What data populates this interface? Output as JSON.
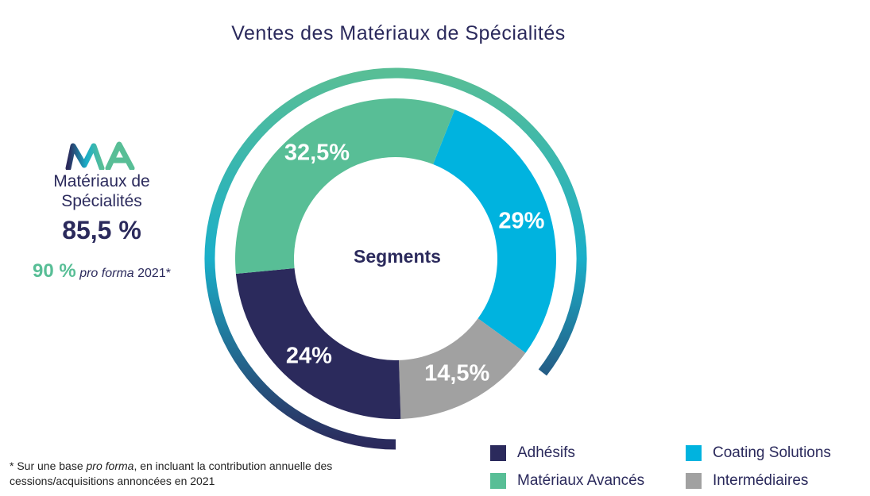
{
  "title": "Ventes des Matériaux de Spécialités",
  "left_panel": {
    "logo_text": "MA",
    "name": "Matériaux de Spécialités",
    "value": "85,5 %",
    "proforma_value": "90 %",
    "proforma_italic": "pro forma",
    "proforma_year": "2021*"
  },
  "footnote": {
    "prefix": "* Sur une base ",
    "italic": "pro forma",
    "suffix": ", en incluant la contribution annuelle des cessions/acquisitions annoncées en 2021"
  },
  "colors": {
    "Adhésifs": "#2b2a5c",
    "Matériaux Avancés": "#58be96",
    "Coating Solutions": "#00b3df",
    "Intermédiaires": "#a1a1a1",
    "ring_top": "#58be96",
    "ring_mid": "#1aafc9",
    "ring_bottom": "#2b2a5c"
  },
  "legend": [
    {
      "name": "Adhésifs",
      "color": "#2b2a5c"
    },
    {
      "name": "Coating Solutions",
      "color": "#00b3df"
    },
    {
      "name": "Matériaux Avancés",
      "color": "#58be96"
    },
    {
      "name": "Intermédiaires",
      "color": "#a1a1a1"
    }
  ],
  "chart_data": {
    "type": "pie",
    "title": "Ventes des Matériaux de Spécialités",
    "center_label": "Segments",
    "categories": [
      "Coating Solutions",
      "Intermédiaires",
      "Adhésifs",
      "Matériaux Avancés"
    ],
    "values": [
      29,
      14.5,
      24,
      32.5
    ],
    "labels": [
      "29%",
      "14,5%",
      "24%",
      "32,5%"
    ],
    "outer_ring_share": 85.5,
    "legend_position": "bottom-right"
  }
}
